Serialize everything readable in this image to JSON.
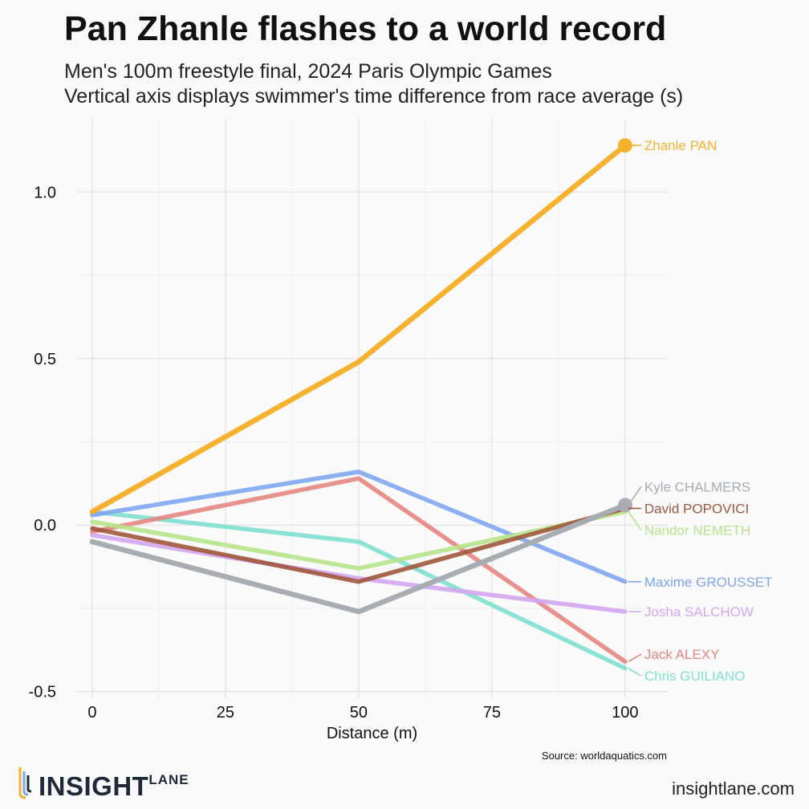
{
  "title": "Pan Zhanle flashes to a world record",
  "subtitle_line1": "Men's 100m freestyle final, 2024 Paris Olympic Games",
  "subtitle_line2": "Vertical axis displays swimmer's time difference from race average (s)",
  "source": "Source: worldaquatics.com",
  "brand": {
    "logo_main": "INSIGHT",
    "logo_sup": "LANE",
    "website": "insightlane.com"
  },
  "chart_data": {
    "type": "line",
    "xlabel": "Distance (m)",
    "ylabel": "",
    "xlim": [
      -3,
      108
    ],
    "ylim": [
      -0.52,
      1.22
    ],
    "x": [
      0,
      50,
      100
    ],
    "x_ticks": [
      0,
      25,
      50,
      75,
      100
    ],
    "x_tick_labels": [
      "0",
      "25",
      "50",
      "75",
      "100"
    ],
    "y_ticks": [
      -0.5,
      0.0,
      0.5,
      1.0
    ],
    "y_tick_labels": [
      "-0.5",
      "0.0",
      "0.5",
      "1.0"
    ],
    "grid": true,
    "legend": "direct labels at line ends",
    "series": [
      {
        "name": "Chris GUILIANO",
        "values": [
          0.04,
          -0.05,
          -0.43
        ],
        "color": "#7fe0d0"
      },
      {
        "name": "Jack ALEXY",
        "values": [
          -0.02,
          0.14,
          -0.41
        ],
        "color": "#e58581"
      },
      {
        "name": "Maxime GROUSSET",
        "values": [
          0.03,
          0.16,
          -0.17
        ],
        "color": "#7ea6ee"
      },
      {
        "name": "Josha SALCHOW",
        "values": [
          -0.03,
          -0.16,
          -0.26
        ],
        "color": "#d3a6ee"
      },
      {
        "name": "Nandor NEMETH",
        "values": [
          0.01,
          -0.13,
          0.04
        ],
        "color": "#b6e48a"
      },
      {
        "name": "David POPOVICI",
        "values": [
          -0.01,
          -0.17,
          0.05
        ],
        "color": "#a0583b"
      },
      {
        "name": "Kyle CHALMERS",
        "values": [
          -0.05,
          -0.26,
          0.06
        ],
        "color": "#a7adb2",
        "highlight": true
      },
      {
        "name": "Zhanle PAN",
        "values": [
          0.04,
          0.49,
          1.14
        ],
        "color": "#f6b12e",
        "highlight": true
      }
    ],
    "label_order_top_to_bottom": [
      "Zhanle PAN",
      "Kyle CHALMERS",
      "David POPOVICI",
      "Nandor NEMETH",
      "Maxime GROUSSET",
      "Josha SALCHOW",
      "Jack ALEXY",
      "Chris GUILIANO"
    ]
  }
}
